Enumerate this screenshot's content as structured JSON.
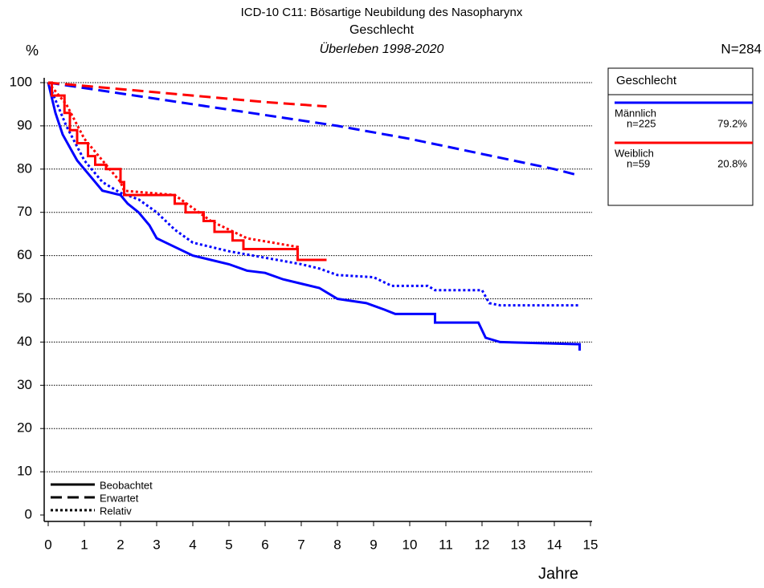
{
  "chart_data": {
    "type": "line",
    "title": "ICD-10 C11: Bösartige Neubildung des Nasopharynx",
    "subtitle": "Geschlecht",
    "subtitle2": "Überleben 1998-2020",
    "ylabel": "%",
    "xlabel": "Jahre",
    "total": "N=284",
    "xlim": [
      0,
      15
    ],
    "ylim": [
      0,
      100
    ],
    "xticks": [
      0,
      1,
      2,
      3,
      4,
      5,
      6,
      7,
      8,
      9,
      10,
      11,
      12,
      13,
      14,
      15
    ],
    "yticks": [
      0,
      10,
      20,
      30,
      40,
      50,
      60,
      70,
      80,
      90,
      100
    ],
    "grid": true,
    "legend_title": "Geschlecht",
    "line_styles": [
      {
        "name": "Beobachtet",
        "dash": "solid"
      },
      {
        "name": "Erwartet",
        "dash": "dashed"
      },
      {
        "name": "Relativ",
        "dash": "dotted"
      }
    ],
    "groups": [
      {
        "name": "Männlich",
        "color": "#0000ff",
        "n": "n=225",
        "share": "79.2%",
        "curves": [
          {
            "dash": "solid",
            "x": [
              0,
              0.2,
              0.4,
              0.6,
              0.8,
              1.0,
              1.2,
              1.5,
              2.0,
              2.2,
              2.5,
              2.8,
              3.0,
              3.5,
              4.0,
              4.5,
              5.0,
              5.5,
              6.0,
              6.5,
              7.0,
              7.5,
              8.0,
              8.8,
              9.3,
              9.6,
              10.7,
              10.7,
              11.9,
              12.1,
              12.5,
              14.7,
              14.7
            ],
            "values": [
              100,
              93,
              88,
              85,
              82,
              80,
              78,
              75,
              74,
              72,
              70,
              67,
              64,
              62,
              60,
              59,
              58,
              56.5,
              56,
              54.5,
              53.5,
              52.5,
              50,
              49,
              47.5,
              46.5,
              46.5,
              44.5,
              44.5,
              41,
              40,
              39.5,
              38
            ]
          },
          {
            "dash": "dashed",
            "x": [
              0,
              2,
              4,
              6,
              8,
              10,
              12,
              14,
              14.7
            ],
            "values": [
              100,
              97.5,
              95,
              92.5,
              90,
              87,
              83.5,
              80,
              78.5
            ]
          },
          {
            "dash": "dotted",
            "x": [
              0,
              0.5,
              1,
              1.5,
              2,
              2.5,
              3,
              3.5,
              4,
              5,
              6,
              7,
              7.5,
              8,
              9,
              9.5,
              10.5,
              10.7,
              12,
              12.2,
              12.5,
              14.7
            ],
            "values": [
              100,
              90,
              82,
              77,
              74.5,
              73,
              70,
              66,
              63,
              61,
              59.5,
              58,
              57,
              55.5,
              55,
              53,
              53,
              52,
              52,
              49,
              48.5,
              48.5
            ]
          }
        ]
      },
      {
        "name": "Weiblich",
        "color": "#ff0000",
        "n": "n=59",
        "share": "20.8%",
        "curves": [
          {
            "dash": "solid",
            "x": [
              0,
              0.1,
              0.1,
              0.45,
              0.45,
              0.6,
              0.6,
              0.8,
              0.8,
              1.1,
              1.1,
              1.3,
              1.3,
              1.6,
              1.6,
              2,
              2,
              2.1,
              2.1,
              3.5,
              3.5,
              3.8,
              3.8,
              4.3,
              4.3,
              4.6,
              4.6,
              5.1,
              5.1,
              5.4,
              5.4,
              6.9,
              6.9,
              7.7
            ],
            "values": [
              100,
              100,
              97,
              97,
              93,
              93,
              89,
              89,
              86,
              86,
              83,
              83,
              81,
              81,
              80,
              80,
              77,
              77,
              74,
              74,
              72,
              72,
              70,
              70,
              68,
              68,
              65.5,
              65.5,
              63.5,
              63.5,
              61.5,
              61.5,
              59,
              59
            ]
          },
          {
            "dash": "dashed",
            "x": [
              0,
              2,
              4,
              6,
              7.7
            ],
            "values": [
              100,
              98.5,
              97,
              95.5,
              94.5
            ]
          },
          {
            "dash": "dotted",
            "x": [
              0,
              0.5,
              1,
              1.5,
              2,
              2.1,
              3.5,
              4,
              4.5,
              5,
              5.5,
              6.9,
              6.9,
              7.7
            ],
            "values": [
              100,
              95,
              87,
              82,
              77,
              75,
              74,
              71,
              68,
              66,
              64,
              62,
              59,
              59
            ]
          }
        ]
      }
    ]
  }
}
